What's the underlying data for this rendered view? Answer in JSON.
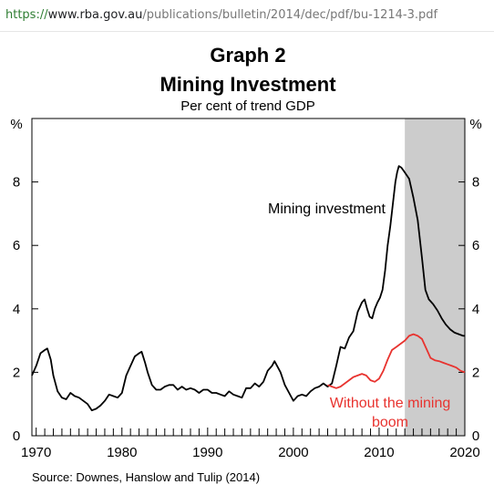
{
  "browser": {
    "url_scheme": "https://",
    "url_domain": "www.rba.gov.au",
    "url_path": "/publications/bulletin/2014/dec/pdf/bu-1214-3.pdf"
  },
  "chart_data": {
    "type": "line",
    "title": "Graph 2",
    "subtitle": "Mining Investment",
    "unit_note": "Per cent of trend GDP",
    "ylabel_left": "%",
    "ylabel_right": "%",
    "source": "Source: Downes, Hanslow and Tulip (2014)",
    "xlim": [
      1969.5,
      2020
    ],
    "ylim": [
      0,
      10
    ],
    "x_ticks": [
      1970,
      1980,
      1990,
      2000,
      2010,
      2020
    ],
    "y_ticks": [
      0,
      2,
      4,
      6,
      8
    ],
    "shaded_region": {
      "from": 2013,
      "to": 2020,
      "color": "#cccccc"
    },
    "series": [
      {
        "name": "Mining investment",
        "color": "#000000",
        "points": [
          [
            1969.5,
            1.9
          ],
          [
            1970.0,
            2.2
          ],
          [
            1970.5,
            2.6
          ],
          [
            1971.0,
            2.7
          ],
          [
            1971.3,
            2.75
          ],
          [
            1971.7,
            2.4
          ],
          [
            1972.0,
            1.9
          ],
          [
            1972.5,
            1.4
          ],
          [
            1973.0,
            1.2
          ],
          [
            1973.5,
            1.15
          ],
          [
            1974.0,
            1.35
          ],
          [
            1974.5,
            1.25
          ],
          [
            1975.0,
            1.2
          ],
          [
            1975.5,
            1.1
          ],
          [
            1976.0,
            1.0
          ],
          [
            1976.5,
            0.8
          ],
          [
            1977.0,
            0.85
          ],
          [
            1977.5,
            0.95
          ],
          [
            1978.0,
            1.1
          ],
          [
            1978.5,
            1.3
          ],
          [
            1979.0,
            1.25
          ],
          [
            1979.5,
            1.2
          ],
          [
            1980.0,
            1.35
          ],
          [
            1980.5,
            1.9
          ],
          [
            1981.0,
            2.2
          ],
          [
            1981.5,
            2.5
          ],
          [
            1982.0,
            2.6
          ],
          [
            1982.3,
            2.65
          ],
          [
            1982.7,
            2.3
          ],
          [
            1983.0,
            2.0
          ],
          [
            1983.5,
            1.6
          ],
          [
            1984.0,
            1.45
          ],
          [
            1984.5,
            1.45
          ],
          [
            1985.0,
            1.55
          ],
          [
            1985.5,
            1.6
          ],
          [
            1986.0,
            1.6
          ],
          [
            1986.5,
            1.45
          ],
          [
            1987.0,
            1.55
          ],
          [
            1987.5,
            1.45
          ],
          [
            1988.0,
            1.5
          ],
          [
            1988.5,
            1.45
          ],
          [
            1989.0,
            1.35
          ],
          [
            1989.5,
            1.45
          ],
          [
            1990.0,
            1.45
          ],
          [
            1990.5,
            1.35
          ],
          [
            1991.0,
            1.35
          ],
          [
            1991.5,
            1.3
          ],
          [
            1992.0,
            1.25
          ],
          [
            1992.5,
            1.4
          ],
          [
            1993.0,
            1.3
          ],
          [
            1993.5,
            1.25
          ],
          [
            1994.0,
            1.2
          ],
          [
            1994.5,
            1.5
          ],
          [
            1995.0,
            1.5
          ],
          [
            1995.5,
            1.65
          ],
          [
            1996.0,
            1.55
          ],
          [
            1996.5,
            1.7
          ],
          [
            1997.0,
            2.05
          ],
          [
            1997.5,
            2.2
          ],
          [
            1997.8,
            2.35
          ],
          [
            1998.2,
            2.15
          ],
          [
            1998.5,
            2.0
          ],
          [
            1999.0,
            1.6
          ],
          [
            1999.5,
            1.35
          ],
          [
            2000.0,
            1.1
          ],
          [
            2000.5,
            1.25
          ],
          [
            2001.0,
            1.3
          ],
          [
            2001.5,
            1.25
          ],
          [
            2002.0,
            1.4
          ],
          [
            2002.5,
            1.5
          ],
          [
            2003.0,
            1.55
          ],
          [
            2003.5,
            1.65
          ],
          [
            2004.0,
            1.55
          ],
          [
            2004.5,
            1.65
          ],
          [
            2005.0,
            2.2
          ],
          [
            2005.5,
            2.8
          ],
          [
            2006.0,
            2.75
          ],
          [
            2006.5,
            3.1
          ],
          [
            2007.0,
            3.3
          ],
          [
            2007.5,
            3.9
          ],
          [
            2008.0,
            4.2
          ],
          [
            2008.3,
            4.3
          ],
          [
            2008.6,
            4.0
          ],
          [
            2008.9,
            3.75
          ],
          [
            2009.2,
            3.7
          ],
          [
            2009.5,
            4.0
          ],
          [
            2009.8,
            4.2
          ],
          [
            2010.1,
            4.35
          ],
          [
            2010.4,
            4.6
          ],
          [
            2010.7,
            5.2
          ],
          [
            2011.0,
            6.0
          ],
          [
            2011.3,
            6.6
          ],
          [
            2011.6,
            7.3
          ],
          [
            2011.9,
            8.0
          ],
          [
            2012.1,
            8.3
          ],
          [
            2012.3,
            8.5
          ],
          [
            2012.6,
            8.45
          ],
          [
            2013.0,
            8.3
          ],
          [
            2013.5,
            8.1
          ],
          [
            2014.0,
            7.5
          ],
          [
            2014.5,
            6.8
          ],
          [
            2015.0,
            5.6
          ],
          [
            2015.4,
            4.6
          ],
          [
            2015.8,
            4.3
          ],
          [
            2016.3,
            4.15
          ],
          [
            2016.8,
            3.95
          ],
          [
            2017.3,
            3.7
          ],
          [
            2017.8,
            3.5
          ],
          [
            2018.3,
            3.35
          ],
          [
            2018.8,
            3.25
          ],
          [
            2019.3,
            3.2
          ],
          [
            2019.8,
            3.15
          ],
          [
            2020.0,
            3.15
          ]
        ]
      },
      {
        "name": "Without the mining boom",
        "color": "#e8332f",
        "points": [
          [
            2004.0,
            1.6
          ],
          [
            2004.5,
            1.55
          ],
          [
            2005.0,
            1.5
          ],
          [
            2005.5,
            1.55
          ],
          [
            2006.0,
            1.65
          ],
          [
            2006.5,
            1.75
          ],
          [
            2007.0,
            1.85
          ],
          [
            2007.5,
            1.9
          ],
          [
            2008.0,
            1.95
          ],
          [
            2008.5,
            1.9
          ],
          [
            2009.0,
            1.75
          ],
          [
            2009.5,
            1.7
          ],
          [
            2010.0,
            1.8
          ],
          [
            2010.5,
            2.05
          ],
          [
            2011.0,
            2.4
          ],
          [
            2011.5,
            2.7
          ],
          [
            2012.0,
            2.8
          ],
          [
            2012.5,
            2.9
          ],
          [
            2013.0,
            3.0
          ],
          [
            2013.5,
            3.15
          ],
          [
            2014.0,
            3.2
          ],
          [
            2014.5,
            3.15
          ],
          [
            2015.0,
            3.05
          ],
          [
            2015.5,
            2.75
          ],
          [
            2016.0,
            2.45
          ],
          [
            2016.5,
            2.38
          ],
          [
            2017.0,
            2.35
          ],
          [
            2017.5,
            2.3
          ],
          [
            2018.0,
            2.25
          ],
          [
            2018.5,
            2.2
          ],
          [
            2019.0,
            2.15
          ],
          [
            2019.5,
            2.05
          ],
          [
            2020.0,
            2.0
          ]
        ]
      }
    ],
    "annotations": {
      "mining_label": "Mining investment",
      "without_line1": "Without the mining",
      "without_line2": "boom"
    }
  }
}
